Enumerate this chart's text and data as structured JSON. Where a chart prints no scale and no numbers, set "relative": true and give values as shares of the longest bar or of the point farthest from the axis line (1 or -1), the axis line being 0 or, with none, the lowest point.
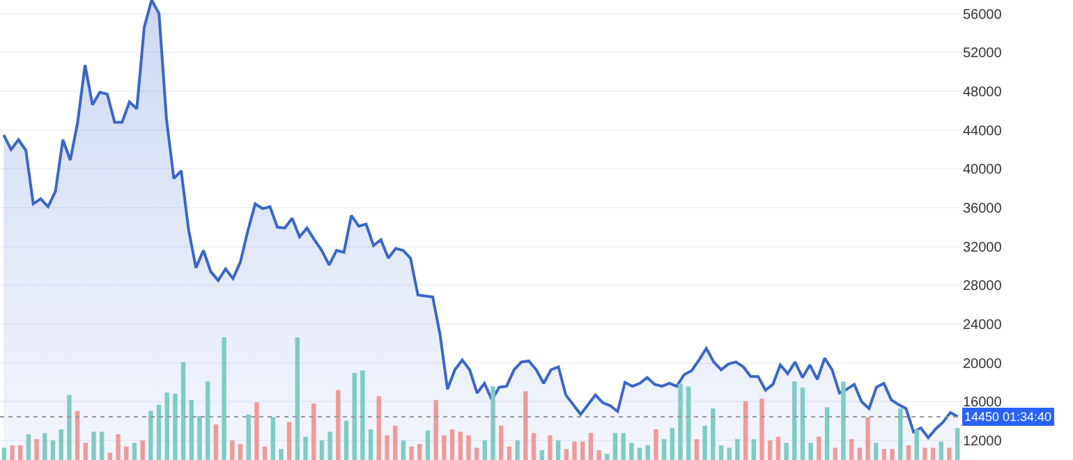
{
  "chart_data": [
    {
      "type": "area",
      "categories": [
        null,
        null,
        null,
        null,
        null,
        null,
        null,
        null,
        null,
        null,
        null,
        null,
        null,
        null,
        null,
        null,
        null,
        null,
        null,
        null,
        null,
        null,
        null,
        null,
        null,
        null,
        null,
        null,
        null,
        null,
        null,
        null,
        null,
        null,
        null,
        null,
        null,
        null,
        null,
        null,
        null,
        null,
        null,
        null,
        null,
        null,
        null,
        null,
        null,
        null,
        null,
        null,
        null,
        null,
        null,
        null,
        null,
        null,
        null,
        null,
        null,
        null,
        null,
        null,
        null,
        null,
        null,
        null,
        null,
        null,
        null,
        null,
        null,
        null,
        null,
        null,
        null,
        null,
        null,
        null,
        null,
        null,
        null,
        null,
        null,
        null,
        null,
        null,
        null,
        null,
        null,
        null,
        null,
        null,
        null,
        null,
        null,
        null,
        null,
        null,
        null,
        null,
        null,
        null,
        null,
        null,
        null,
        null,
        null,
        null,
        null,
        null,
        null,
        null,
        null,
        null,
        null,
        null,
        null,
        null,
        null,
        null,
        null,
        null,
        null,
        null,
        null,
        null,
        null,
        null
      ],
      "series": [
        {
          "color": "#3a66c9",
          "values": [
            43500,
            42000,
            43000,
            41900,
            36400,
            36900,
            36100,
            37700,
            43000,
            40900,
            44800,
            50700,
            46600,
            47900,
            47700,
            44800,
            44800,
            46900,
            46200,
            54600,
            57400,
            56000,
            45200,
            39000,
            39800,
            33700,
            29800,
            31600,
            29400,
            28500,
            29700,
            28700,
            30400,
            33600,
            36400,
            35900,
            36100,
            34000,
            33900,
            34900,
            33000,
            33900,
            32700,
            31600,
            30100,
            31600,
            31400,
            35200,
            34100,
            34300,
            32100,
            32700,
            30800,
            31800,
            31600,
            30800,
            27000,
            26900,
            26800,
            22900,
            17300,
            19300,
            20300,
            19300,
            16900,
            17900,
            16200,
            17500,
            17600,
            19300,
            20100,
            20200,
            19300,
            17900,
            19300,
            19600,
            16700,
            15700,
            14700,
            15700,
            16700,
            15900,
            15600,
            15000,
            18000,
            17600,
            17900,
            18500,
            17800,
            17600,
            17900,
            17600,
            18800,
            19200,
            20300,
            21500,
            20100,
            19300,
            19900,
            20100,
            19600,
            18600,
            18600,
            17200,
            17800,
            19800,
            18900,
            20100,
            18500,
            19800,
            18300,
            20500,
            19300,
            16900,
            17300,
            17800,
            16000,
            15300,
            17500,
            17900,
            16200,
            15700,
            15300,
            12900,
            13300,
            12300,
            13200,
            13900,
            14900,
            14450
          ]
        }
      ],
      "ylim": [
        10000,
        57400
      ],
      "yticks": [
        12000,
        16000,
        20000,
        24000,
        28000,
        32000,
        36000,
        40000,
        44000,
        48000,
        52000,
        56000
      ],
      "grid": "y",
      "ref_lines": [
        {
          "axis": "y",
          "value": 14450,
          "label": "14450",
          "color": "#9598a1",
          "line_style": "dotted"
        }
      ],
      "annotations": [
        "01:34:40"
      ]
    },
    {
      "type": "bar",
      "relative": true,
      "categories": [
        null,
        null,
        null,
        null,
        null,
        null,
        null,
        null,
        null,
        null,
        null,
        null,
        null,
        null,
        null,
        null,
        null,
        null,
        null,
        null,
        null,
        null,
        null,
        null,
        null,
        null,
        null,
        null,
        null,
        null,
        null,
        null,
        null,
        null,
        null,
        null,
        null,
        null,
        null,
        null,
        null,
        null,
        null,
        null,
        null,
        null,
        null,
        null,
        null,
        null,
        null,
        null,
        null,
        null,
        null,
        null,
        null,
        null,
        null,
        null,
        null,
        null,
        null,
        null,
        null,
        null,
        null,
        null,
        null,
        null,
        null,
        null,
        null,
        null,
        null,
        null,
        null,
        null,
        null,
        null,
        null,
        null,
        null,
        null,
        null,
        null,
        null,
        null,
        null,
        null,
        null,
        null,
        null,
        null,
        null,
        null,
        null,
        null,
        null,
        null,
        null,
        null,
        null,
        null,
        null,
        null,
        null,
        null,
        null,
        null,
        null,
        null,
        null,
        null,
        null,
        null,
        null,
        null
      ],
      "values": [
        0.1,
        0.12,
        0.12,
        0.21,
        0.17,
        0.22,
        0.16,
        0.25,
        0.53,
        0.4,
        0.14,
        0.23,
        0.23,
        0.06,
        0.21,
        0.11,
        0.14,
        0.16,
        0.4,
        0.45,
        0.55,
        0.54,
        0.8,
        0.49,
        0.36,
        0.64,
        0.29,
        1.0,
        0.16,
        0.13,
        0.37,
        0.47,
        0.11,
        0.35,
        0.09,
        0.31,
        1.0,
        0.19,
        0.46,
        0.16,
        0.23,
        0.57,
        0.32,
        0.71,
        0.73,
        0.25,
        0.52,
        0.2,
        0.28,
        0.16,
        0.11,
        0.13,
        0.24,
        0.49,
        0.2,
        0.25,
        0.23,
        0.2,
        0.1,
        0.16,
        0.6,
        0.28,
        0.11,
        0.16,
        0.56,
        0.22,
        0.08,
        0.2,
        0.16,
        0.09,
        0.15,
        0.15,
        0.22,
        0.08,
        0.05,
        0.22,
        0.22,
        0.14,
        0.1,
        0.12,
        0.25,
        0.17,
        0.26,
        0.62,
        0.6,
        0.17,
        0.28,
        0.42,
        0.12,
        0.1,
        0.17,
        0.48,
        0.17,
        0.5,
        0.16,
        0.19,
        0.14,
        0.64,
        0.59,
        0.14,
        0.19,
        0.43,
        0.1,
        0.64,
        0.17,
        0.1,
        0.35,
        0.14,
        0.09,
        0.09,
        0.42,
        0.12,
        0.25,
        0.1,
        0.1,
        0.15,
        0.1,
        0.26
      ],
      "colors": [
        "#80cbc4",
        "#ef9a9a",
        "#ef9a9a",
        "#80cbc4",
        "#ef9a9a",
        "#80cbc4",
        "#80cbc4",
        "#80cbc4",
        "#80cbc4",
        "#ef9a9a",
        "#ef9a9a",
        "#80cbc4",
        "#80cbc4",
        "#ef9a9a",
        "#ef9a9a",
        "#ef9a9a",
        "#80cbc4",
        "#ef9a9a",
        "#80cbc4",
        "#80cbc4",
        "#80cbc4",
        "#80cbc4",
        "#80cbc4",
        "#80cbc4",
        "#80cbc4",
        "#80cbc4",
        "#ef9a9a",
        "#80cbc4",
        "#ef9a9a",
        "#ef9a9a",
        "#80cbc4",
        "#ef9a9a",
        "#ef9a9a",
        "#80cbc4",
        "#80cbc4",
        "#ef9a9a",
        "#80cbc4",
        "#80cbc4",
        "#ef9a9a",
        "#80cbc4",
        "#80cbc4",
        "#ef9a9a",
        "#80cbc4",
        "#80cbc4",
        "#80cbc4",
        "#80cbc4",
        "#ef9a9a",
        "#ef9a9a",
        "#ef9a9a",
        "#80cbc4",
        "#ef9a9a",
        "#ef9a9a",
        "#80cbc4",
        "#ef9a9a",
        "#ef9a9a",
        "#ef9a9a",
        "#ef9a9a",
        "#ef9a9a",
        "#ef9a9a",
        "#80cbc4",
        "#80cbc4",
        "#ef9a9a",
        "#ef9a9a",
        "#80cbc4",
        "#ef9a9a",
        "#ef9a9a",
        "#80cbc4",
        "#ef9a9a",
        "#80cbc4",
        "#ef9a9a",
        "#ef9a9a",
        "#ef9a9a",
        "#ef9a9a",
        "#ef9a9a",
        "#80cbc4",
        "#80cbc4",
        "#80cbc4",
        "#80cbc4",
        "#80cbc4",
        "#80cbc4",
        "#ef9a9a",
        "#80cbc4",
        "#80cbc4",
        "#80cbc4",
        "#80cbc4",
        "#ef9a9a",
        "#80cbc4",
        "#80cbc4",
        "#80cbc4",
        "#80cbc4",
        "#80cbc4",
        "#ef9a9a",
        "#80cbc4",
        "#ef9a9a",
        "#ef9a9a",
        "#ef9a9a",
        "#80cbc4",
        "#80cbc4",
        "#80cbc4",
        "#80cbc4",
        "#ef9a9a",
        "#80cbc4",
        "#ef9a9a",
        "#80cbc4",
        "#ef9a9a",
        "#ef9a9a",
        "#ef9a9a",
        "#80cbc4",
        "#ef9a9a",
        "#ef9a9a",
        "#80cbc4",
        "#ef9a9a",
        "#80cbc4",
        "#ef9a9a",
        "#ef9a9a",
        "#80cbc4",
        "#ef9a9a",
        "#80cbc4"
      ]
    }
  ]
}
